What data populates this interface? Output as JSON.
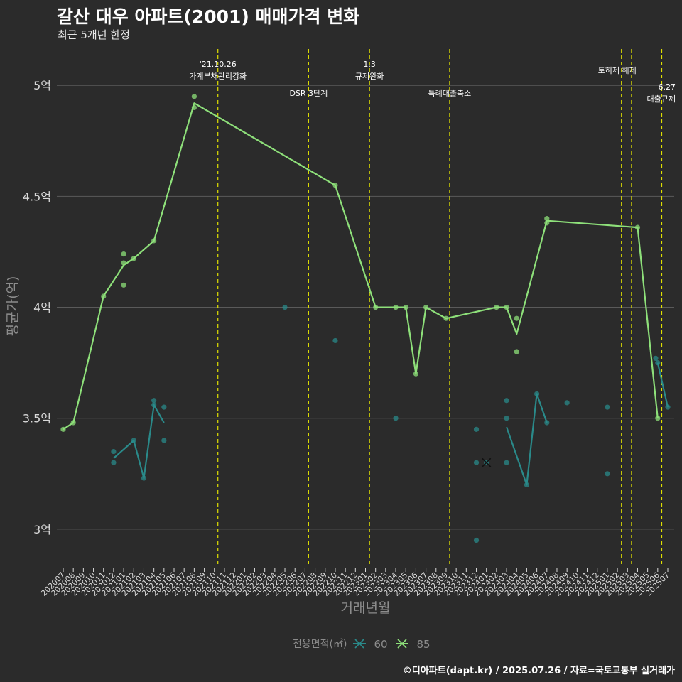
{
  "header": {
    "title": "갈산 대우 아파트(2001) 매매가격 변화",
    "subtitle": "최근 5개년 한정"
  },
  "footer": {
    "caption": "©디아파트(dapt.kr) / 2025.07.26 / 자료=국토교통부 실거래가"
  },
  "colors": {
    "background": "#2b2b2b",
    "grid": "#5a5a5a",
    "text": "#d9d9d9",
    "axis_title": "#8c8c8c",
    "event_line": "#e0e000",
    "series_60": "#2a8a8a",
    "series_85": "#8ee07a"
  },
  "chart_data": {
    "type": "line",
    "title": "갈산 대우 아파트(2001) 매매가격 변화",
    "xlabel": "거래년월",
    "ylabel": "평균가(억)",
    "ylim": [
      2.83,
      5.18
    ],
    "yticks": [
      3,
      3.5,
      4,
      4.5,
      5
    ],
    "ytick_labels": [
      "3억",
      "3.5억",
      "4억",
      "4.5억",
      "5억"
    ],
    "categories": [
      "202007",
      "202008",
      "202009",
      "202010",
      "202011",
      "202012",
      "202101",
      "202102",
      "202103",
      "202104",
      "202105",
      "202106",
      "202107",
      "202108",
      "202109",
      "202110",
      "202111",
      "202112",
      "202201",
      "202202",
      "202203",
      "202204",
      "202205",
      "202206",
      "202207",
      "202208",
      "202209",
      "202210",
      "202211",
      "202212",
      "202301",
      "202302",
      "202303",
      "202304",
      "202305",
      "202306",
      "202307",
      "202308",
      "202309",
      "202310",
      "202311",
      "202312",
      "202401",
      "202402",
      "202403",
      "202404",
      "202405",
      "202406",
      "202407",
      "202408",
      "202409",
      "202410",
      "202411",
      "202412",
      "202501",
      "202502",
      "202503",
      "202504",
      "202505",
      "202506",
      "202507"
    ],
    "legend": {
      "title": "전용면적(㎡)",
      "position": "bottom",
      "entries": [
        "60",
        "85"
      ]
    },
    "events": [
      {
        "date": "2021-10-26",
        "x": 15.35,
        "label": "'21.10.26\n가계부채관리강화",
        "label_pos": "top"
      },
      {
        "date": "2022-07-01",
        "x": 24.35,
        "label": "DSR 3단계",
        "label_pos": "lower"
      },
      {
        "date": "2023-01-03",
        "x": 30.4,
        "label": "1.3\n규제완화",
        "label_pos": "top"
      },
      {
        "date": "2023-09-27",
        "x": 38.35,
        "label": "특례대출축소",
        "label_pos": "lower"
      },
      {
        "date": "2025-02-12",
        "x": 55.4,
        "label": "토허제 해제",
        "label_pos": "mid"
      },
      {
        "date": "2025-03-24",
        "x": 56.4,
        "label": "",
        "label_pos": "none"
      },
      {
        "date": "2025-06-27",
        "x": 59.4,
        "label": "6.27\n대출규제",
        "label_pos": "right"
      }
    ],
    "series": [
      {
        "name": "60",
        "line": [
          [
            [
              5,
              3.32
            ],
            [
              7,
              3.4
            ],
            [
              8,
              3.23
            ],
            [
              9,
              3.56
            ],
            [
              10,
              3.48
            ]
          ],
          [
            [
              44,
              3.46
            ],
            [
              46,
              3.2
            ],
            [
              47,
              3.61
            ],
            [
              48,
              3.48
            ]
          ],
          [
            [
              59,
              3.75
            ],
            [
              60,
              3.55
            ]
          ]
        ],
        "points": [
          [
            5,
            3.35
          ],
          [
            5,
            3.3
          ],
          [
            7,
            3.4
          ],
          [
            8,
            3.23
          ],
          [
            9,
            3.58
          ],
          [
            9,
            3.56
          ],
          [
            10,
            3.55
          ],
          [
            10,
            3.4
          ],
          [
            22,
            4.0
          ],
          [
            27,
            3.85
          ],
          [
            33,
            3.5
          ],
          [
            41,
            3.45
          ],
          [
            41,
            3.3
          ],
          [
            41,
            2.95
          ],
          [
            42,
            3.3
          ],
          [
            44,
            3.58
          ],
          [
            44,
            3.5
          ],
          [
            44,
            3.3
          ],
          [
            46,
            3.2
          ],
          [
            47,
            3.61
          ],
          [
            48,
            3.48
          ],
          [
            50,
            3.57
          ],
          [
            54,
            3.55
          ],
          [
            54,
            3.25
          ],
          [
            58.8,
            3.77
          ],
          [
            59,
            3.75
          ],
          [
            60,
            3.55
          ]
        ]
      },
      {
        "name": "85",
        "line": [
          [
            [
              0,
              3.45
            ],
            [
              1,
              3.48
            ],
            [
              4,
              4.05
            ],
            [
              6,
              4.19
            ],
            [
              7,
              4.22
            ],
            [
              9,
              4.3
            ],
            [
              13,
              4.92
            ],
            [
              27,
              4.55
            ],
            [
              31,
              4.0
            ],
            [
              33,
              4.0
            ],
            [
              34,
              4.0
            ],
            [
              35,
              3.7
            ],
            [
              36,
              4.0
            ],
            [
              38,
              3.95
            ],
            [
              43,
              4.0
            ],
            [
              44,
              4.0
            ],
            [
              45,
              3.88
            ],
            [
              48,
              4.39
            ],
            [
              57,
              4.36
            ],
            [
              59,
              3.5
            ]
          ]
        ],
        "points": [
          [
            0,
            3.45
          ],
          [
            1,
            3.48
          ],
          [
            4,
            4.05
          ],
          [
            6,
            4.24
          ],
          [
            6,
            4.2
          ],
          [
            6,
            4.1
          ],
          [
            7,
            4.22
          ],
          [
            9,
            4.3
          ],
          [
            13,
            4.95
          ],
          [
            13,
            4.9
          ],
          [
            27,
            4.55
          ],
          [
            31,
            4.0
          ],
          [
            33,
            4.0
          ],
          [
            34,
            4.0
          ],
          [
            35,
            3.7
          ],
          [
            36,
            4.0
          ],
          [
            38,
            3.95
          ],
          [
            43,
            4.0
          ],
          [
            44,
            4.0
          ],
          [
            45,
            3.95
          ],
          [
            45,
            3.8
          ],
          [
            48,
            4.4
          ],
          [
            48,
            4.38
          ],
          [
            57,
            4.36
          ],
          [
            59,
            3.5
          ]
        ]
      }
    ],
    "cross_marker": {
      "x": 42,
      "y": 3.3
    }
  }
}
